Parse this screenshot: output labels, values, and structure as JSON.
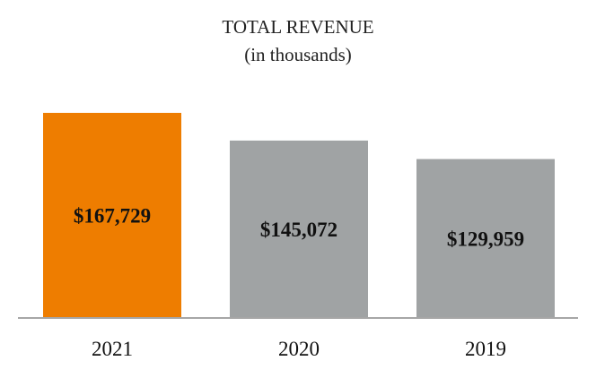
{
  "chart_data": {
    "type": "bar",
    "title": "TOTAL REVENUE",
    "subtitle": "(in thousands)",
    "categories": [
      "2021",
      "2020",
      "2019"
    ],
    "values": [
      167729,
      145072,
      129959
    ],
    "value_labels": [
      "$167,729",
      "$145,072",
      "$129,959"
    ],
    "xlabel": "",
    "ylabel": "",
    "ylim": [
      0,
      167729
    ],
    "grid": false,
    "legend": "none",
    "colors": [
      "#ee7d00",
      "#a0a3a4",
      "#a0a3a4"
    ],
    "axis_color": "#a6a6a6"
  }
}
